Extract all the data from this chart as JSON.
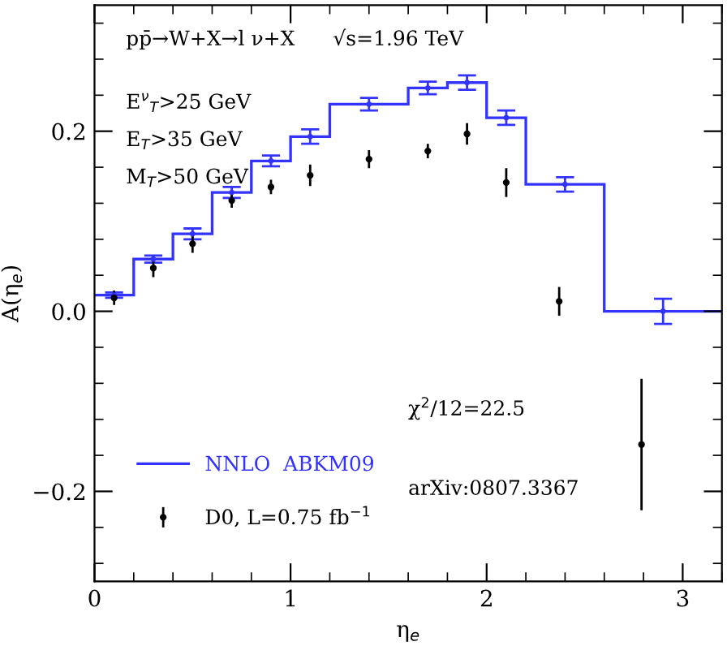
{
  "chart_data": {
    "type": "histogram",
    "xlabel": "η$_{e}$",
    "ylabel": "A(η$_{e}$)",
    "bins": [
      0,
      0.2,
      0.4,
      0.6,
      0.8,
      1.0,
      1.2,
      1.6,
      1.8,
      2.0,
      2.2,
      2.6,
      3.2
    ],
    "series": [
      {
        "name": "NNLO  ABKM09",
        "color": "#3333ff",
        "values": [
          0.018,
          0.058,
          0.086,
          0.132,
          0.167,
          0.194,
          0.23,
          0.248,
          0.254,
          0.215,
          0.141,
          0.0
        ]
      },
      {
        "type": "scatter",
        "color": "#3333ff",
        "x": [
          0.1,
          0.3,
          0.5,
          0.7,
          0.9,
          1.1,
          1.4,
          1.7,
          1.9,
          2.1,
          2.4,
          2.9
        ],
        "values": [
          0.018,
          0.058,
          0.086,
          0.132,
          0.167,
          0.194,
          0.23,
          0.248,
          0.254,
          0.215,
          0.141,
          0.0
        ],
        "errors": [
          0.003,
          0.004,
          0.006,
          0.006,
          0.006,
          0.008,
          0.007,
          0.007,
          0.008,
          0.008,
          0.008,
          0.014
        ]
      },
      {
        "name": "D0, L=0.75 fb$^{−1}$",
        "type": "scatter",
        "color": "#000000",
        "x": [
          0.1,
          0.3,
          0.5,
          0.7,
          0.9,
          1.1,
          1.4,
          1.7,
          1.9,
          2.1,
          2.37,
          2.79
        ],
        "values": [
          0.015,
          0.048,
          0.075,
          0.123,
          0.138,
          0.151,
          0.169,
          0.178,
          0.197,
          0.143,
          0.011,
          -0.148
        ],
        "errors": [
          0.008,
          0.01,
          0.01,
          0.008,
          0.008,
          0.012,
          0.01,
          0.008,
          0.012,
          0.016,
          0.016,
          0.073
        ]
      }
    ],
    "annotations": [
      "pp̄→W+X→l ν+X",
      "√s=1.96 TeV",
      "E$^{ν}$$_{T}$>25 GeV",
      "E$_{T}$>35 GeV",
      "M$_{T}$>50 GeV",
      "χ$^{2}$/12=22.5",
      "arXiv:0807.3367"
    ],
    "xlim": [
      0,
      3.2
    ],
    "ylim": [
      -0.3,
      0.34
    ],
    "xticks": [
      0,
      1,
      2,
      3,
      {
        "value": 0.2,
        "label": null
      },
      {
        "value": 0.4,
        "label": null
      },
      {
        "value": 0.6,
        "label": null
      },
      {
        "value": 0.8,
        "label": null
      },
      {
        "value": 1.2,
        "label": null
      },
      {
        "value": 1.4,
        "label": null
      },
      {
        "value": 1.6,
        "label": null
      },
      {
        "value": 1.8,
        "label": null
      },
      {
        "value": 2.2,
        "label": null
      },
      {
        "value": 2.4,
        "label": null
      },
      {
        "value": 2.6,
        "label": null
      },
      {
        "value": 2.8,
        "label": null
      },
      {
        "value": 3.2,
        "label": null
      }
    ],
    "yticks": [
      {
        "value": -0.2,
        "label": "−0.2"
      },
      {
        "value": 0,
        "label": "0.0"
      },
      {
        "value": 0.2,
        "label": "0.2"
      },
      {
        "value": -0.28,
        "label": null
      },
      {
        "value": -0.24,
        "label": null
      },
      {
        "value": -0.16,
        "label": null
      },
      {
        "value": -0.12,
        "label": null
      },
      {
        "value": -0.08,
        "label": null
      },
      {
        "value": -0.04,
        "label": null
      },
      {
        "value": 0.04,
        "label": null
      },
      {
        "value": 0.08,
        "label": null
      },
      {
        "value": 0.12,
        "label": null
      },
      {
        "value": 0.16,
        "label": null
      },
      {
        "value": 0.24,
        "label": null
      },
      {
        "value": 0.28,
        "label": null
      },
      {
        "value": 0.32,
        "label": null
      }
    ],
    "legend": "bottom left",
    "marker": "circle",
    "grid": false
  }
}
